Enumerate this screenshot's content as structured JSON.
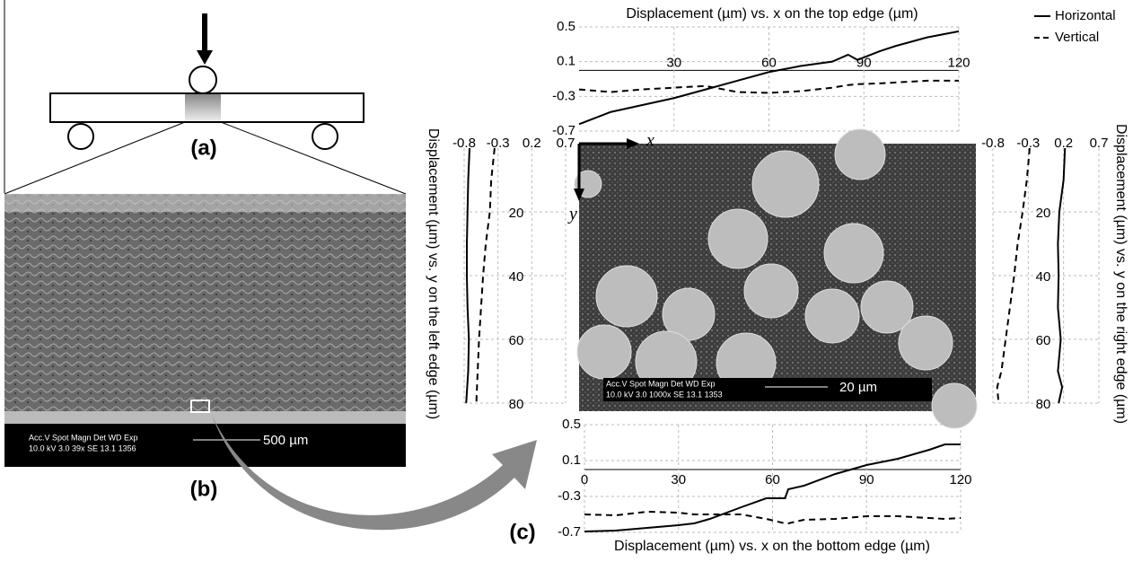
{
  "chart_data": [
    {
      "type": "line",
      "orientation": "horizontal",
      "title": "Displacement (µm) vs. x on the top edge (µm)",
      "x": [
        0,
        10,
        20,
        30,
        40,
        50,
        60,
        70,
        80,
        85,
        88,
        95,
        100,
        110,
        120
      ],
      "xlim": [
        0,
        120
      ],
      "xticks": [
        30,
        60,
        90,
        120
      ],
      "ylim": [
        -0.7,
        0.5
      ],
      "yticks": [
        -0.7,
        -0.3,
        0.1,
        0.5
      ],
      "grid": true,
      "legend": "top-right",
      "series": [
        {
          "name": "Horizontal",
          "color": "#000000",
          "style": "solid",
          "values": [
            -0.62,
            -0.48,
            -0.4,
            -0.32,
            -0.22,
            -0.12,
            -0.02,
            0.05,
            0.1,
            0.18,
            0.12,
            0.22,
            0.28,
            0.38,
            0.45
          ]
        },
        {
          "name": "Vertical",
          "color": "#000000",
          "style": "dashed",
          "values": [
            -0.22,
            -0.25,
            -0.22,
            -0.2,
            -0.18,
            -0.25,
            -0.26,
            -0.24,
            -0.2,
            -0.17,
            -0.16,
            -0.15,
            -0.14,
            -0.12,
            -0.12
          ]
        }
      ]
    },
    {
      "type": "line",
      "orientation": "horizontal",
      "title": "Displacement (µm) vs. x on the bottom edge (µm)",
      "x": [
        0,
        10,
        20,
        30,
        35,
        40,
        50,
        58,
        64,
        65,
        70,
        80,
        90,
        100,
        110,
        115,
        120
      ],
      "xlim": [
        0,
        120
      ],
      "xticks": [
        0,
        30,
        60,
        90,
        120
      ],
      "ylim": [
        -0.7,
        0.5
      ],
      "yticks": [
        -0.7,
        -0.3,
        0.1,
        0.5
      ],
      "grid": true,
      "series": [
        {
          "color": "#000000",
          "style": "solid",
          "values": [
            -0.69,
            -0.68,
            -0.65,
            -0.62,
            -0.6,
            -0.55,
            -0.42,
            -0.32,
            -0.32,
            -0.22,
            -0.18,
            -0.05,
            0.05,
            0.12,
            0.22,
            0.28,
            0.28
          ]
        },
        {
          "color": "#000000",
          "style": "dashed",
          "values": [
            -0.5,
            -0.51,
            -0.47,
            -0.48,
            -0.5,
            -0.5,
            -0.5,
            -0.55,
            -0.6,
            -0.6,
            -0.56,
            -0.55,
            -0.52,
            -0.52,
            -0.54,
            -0.55,
            -0.54
          ]
        }
      ]
    },
    {
      "type": "line",
      "orientation": "vertical",
      "title": "Displacement (µm) vs. y on the left edge (µm)",
      "x": [
        0,
        10,
        20,
        30,
        40,
        50,
        60,
        70,
        80
      ],
      "xlim": [
        0,
        80
      ],
      "xticks": [
        20,
        40,
        60,
        80
      ],
      "ylim": [
        -0.8,
        0.7
      ],
      "yticks": [
        -0.8,
        -0.3,
        0.2,
        0.7
      ],
      "grid": true,
      "series": [
        {
          "color": "#000000",
          "style": "solid",
          "values": [
            -0.72,
            -0.74,
            -0.75,
            -0.76,
            -0.76,
            -0.75,
            -0.73,
            -0.74,
            -0.77
          ]
        },
        {
          "color": "#000000",
          "style": "dashed",
          "values": [
            -0.35,
            -0.4,
            -0.42,
            -0.48,
            -0.52,
            -0.55,
            -0.58,
            -0.6,
            -0.62
          ]
        }
      ]
    },
    {
      "type": "line",
      "orientation": "vertical",
      "title": "Displacement (µm) vs. y on the right edge (µm)",
      "x": [
        0,
        10,
        20,
        30,
        40,
        50,
        60,
        70,
        75,
        80
      ],
      "xlim": [
        0,
        80
      ],
      "xticks": [
        20,
        40,
        60,
        80
      ],
      "ylim": [
        -0.8,
        0.7
      ],
      "yticks": [
        -0.8,
        -0.3,
        0.2,
        0.7
      ],
      "grid": true,
      "series": [
        {
          "color": "#000000",
          "style": "solid",
          "values": [
            0.22,
            0.2,
            0.14,
            0.12,
            0.13,
            0.12,
            0.16,
            0.12,
            0.18,
            0.13
          ]
        },
        {
          "color": "#000000",
          "style": "dashed",
          "values": [
            -0.28,
            -0.32,
            -0.38,
            -0.45,
            -0.5,
            -0.56,
            -0.62,
            -0.68,
            -0.74,
            -0.72
          ]
        }
      ]
    }
  ],
  "figure": {
    "panel_labels": [
      "(a)",
      "(b)",
      "(c)"
    ],
    "sem_b": {
      "header": "Acc.V   Spot Magn    Det   WD   Exp",
      "settings": "10.0 kV 3.0    39x       SE   13.1   1356",
      "scale": "500 µm"
    },
    "sem_c": {
      "header": "Acc.V   Spot Magn    Det   WD   Exp",
      "settings": "10.0 kV 3.0  1000x     SE   13.1   1353",
      "scale": "20 µm"
    },
    "axes": {
      "x": "x",
      "y": "y"
    }
  }
}
